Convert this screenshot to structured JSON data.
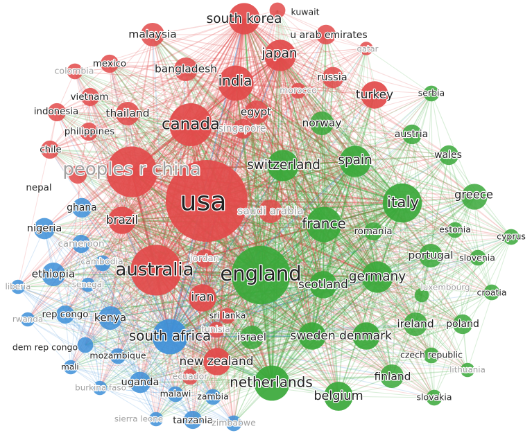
{
  "map": {
    "colors": {
      "red": "#e24a4a",
      "green": "#3aa83a",
      "blue": "#3d8fd8",
      "label": "#222222",
      "label_faint": "#a0a0a0"
    },
    "nodes": [
      {
        "id": "usa",
        "label": "usa",
        "cluster": "red",
        "weight": 10
      },
      {
        "id": "peoples-r-china",
        "label": "peoples r china",
        "cluster": "red",
        "weight": 6,
        "faint": true
      },
      {
        "id": "canada",
        "label": "canada",
        "cluster": "red",
        "weight": 5
      },
      {
        "id": "australia",
        "label": "australia",
        "cluster": "red",
        "weight": 6
      },
      {
        "id": "india",
        "label": "india",
        "cluster": "red",
        "weight": 4
      },
      {
        "id": "japan",
        "label": "japan",
        "cluster": "red",
        "weight": 3.5
      },
      {
        "id": "south-korea",
        "label": "south korea",
        "cluster": "red",
        "weight": 3.5
      },
      {
        "id": "malaysia",
        "label": "malaysia",
        "cluster": "red",
        "weight": 2.5
      },
      {
        "id": "kuwait",
        "label": "kuwait",
        "cluster": "red",
        "weight": 1.5
      },
      {
        "id": "u-arab-emirates",
        "label": "u arab emirates",
        "cluster": "red",
        "weight": 2
      },
      {
        "id": "qatar",
        "label": "qatar",
        "cluster": "red",
        "weight": 1.2,
        "faint": true
      },
      {
        "id": "mexico",
        "label": "mexico",
        "cluster": "red",
        "weight": 1.8
      },
      {
        "id": "colombia",
        "label": "colombia",
        "cluster": "red",
        "weight": 1.5,
        "faint": true
      },
      {
        "id": "bangladesh",
        "label": "bangladesh",
        "cluster": "red",
        "weight": 2.5
      },
      {
        "id": "vietnam",
        "label": "vietnam",
        "cluster": "red",
        "weight": 1.8
      },
      {
        "id": "indonesia",
        "label": "indonesia",
        "cluster": "red",
        "weight": 1.8
      },
      {
        "id": "thailand",
        "label": "thailand",
        "cluster": "red",
        "weight": 2.5
      },
      {
        "id": "philippines",
        "label": "philippines",
        "cluster": "red",
        "weight": 1.8
      },
      {
        "id": "chile",
        "label": "chile",
        "cluster": "red",
        "weight": 1.8
      },
      {
        "id": "nepal",
        "label": "nepal",
        "cluster": "red",
        "weight": 1.8
      },
      {
        "id": "egypt",
        "label": "egypt",
        "cluster": "red",
        "weight": 2.5
      },
      {
        "id": "singapore",
        "label": "singapore",
        "cluster": "red",
        "weight": 2,
        "faint": true
      },
      {
        "id": "russia",
        "label": "russia",
        "cluster": "red",
        "weight": 2.2
      },
      {
        "id": "morocco",
        "label": "morocco",
        "cluster": "red",
        "weight": 1.5,
        "faint": true
      },
      {
        "id": "turkey",
        "label": "turkey",
        "cluster": "red",
        "weight": 3
      },
      {
        "id": "brazil",
        "label": "brazil",
        "cluster": "red",
        "weight": 3
      },
      {
        "id": "saudi-arabia",
        "label": "saudi arabia",
        "cluster": "red",
        "weight": 2.5,
        "faint": true
      },
      {
        "id": "jordan",
        "label": "jordan",
        "cluster": "red",
        "weight": 1.8,
        "faint": true
      },
      {
        "id": "iran",
        "label": "iran",
        "cluster": "red",
        "weight": 3
      },
      {
        "id": "sri-lanka",
        "label": "sri lanka",
        "cluster": "red",
        "weight": 1.5
      },
      {
        "id": "tunisia",
        "label": "tunisia",
        "cluster": "red",
        "weight": 1.5,
        "faint": true
      },
      {
        "id": "new-zealand",
        "label": "new zealand",
        "cluster": "red",
        "weight": 3
      },
      {
        "id": "ecuador",
        "label": "ecuador",
        "cluster": "red",
        "weight": 1.5,
        "faint": true
      },
      {
        "id": "serbia",
        "label": "serbia",
        "cluster": "green",
        "weight": 1.5
      },
      {
        "id": "norway",
        "label": "norway",
        "cluster": "green",
        "weight": 2.5
      },
      {
        "id": "austria",
        "label": "austria",
        "cluster": "green",
        "weight": 2
      },
      {
        "id": "wales",
        "label": "wales",
        "cluster": "green",
        "weight": 2
      },
      {
        "id": "switzerland",
        "label": "switzerland",
        "cluster": "green",
        "weight": 3.5
      },
      {
        "id": "spain",
        "label": "spain",
        "cluster": "green",
        "weight": 3.5
      },
      {
        "id": "greece",
        "label": "greece",
        "cluster": "green",
        "weight": 2.8
      },
      {
        "id": "italy",
        "label": "italy",
        "cluster": "green",
        "weight": 4.5
      },
      {
        "id": "france",
        "label": "france",
        "cluster": "green",
        "weight": 4
      },
      {
        "id": "romania",
        "label": "romania",
        "cluster": "green",
        "weight": 1.8
      },
      {
        "id": "estonia",
        "label": "estonia",
        "cluster": "green",
        "weight": 1.5
      },
      {
        "id": "cyprus",
        "label": "cyprus",
        "cluster": "green",
        "weight": 1.5
      },
      {
        "id": "portugal",
        "label": "portugal",
        "cluster": "green",
        "weight": 2.5
      },
      {
        "id": "slovenia",
        "label": "slovenia",
        "cluster": "green",
        "weight": 1.5
      },
      {
        "id": "england",
        "label": "england",
        "cluster": "green",
        "weight": 7
      },
      {
        "id": "germany",
        "label": "germany",
        "cluster": "green",
        "weight": 3.5
      },
      {
        "id": "scotland",
        "label": "scotland",
        "cluster": "green",
        "weight": 3
      },
      {
        "id": "luxembourg",
        "label": "luxembourg",
        "cluster": "green",
        "weight": 1.3,
        "faint": true
      },
      {
        "id": "croatia",
        "label": "croatia",
        "cluster": "green",
        "weight": 1.5
      },
      {
        "id": "ireland",
        "label": "ireland",
        "cluster": "green",
        "weight": 2.5
      },
      {
        "id": "poland",
        "label": "poland",
        "cluster": "green",
        "weight": 2
      },
      {
        "id": "israel",
        "label": "israel",
        "cluster": "green",
        "weight": 2.5
      },
      {
        "id": "sweden",
        "label": "sweden",
        "cluster": "green",
        "weight": 3
      },
      {
        "id": "denmark",
        "label": "denmark",
        "cluster": "green",
        "weight": 3
      },
      {
        "id": "czech-republic",
        "label": "czech republic",
        "cluster": "green",
        "weight": 1.5
      },
      {
        "id": "lithuania",
        "label": "lithuania",
        "cluster": "green",
        "weight": 1.3,
        "faint": true
      },
      {
        "id": "finland",
        "label": "finland",
        "cluster": "green",
        "weight": 2.5
      },
      {
        "id": "netherlands",
        "label": "netherlands",
        "cluster": "green",
        "weight": 4
      },
      {
        "id": "belgium",
        "label": "belgium",
        "cluster": "green",
        "weight": 3.2
      },
      {
        "id": "slovakia",
        "label": "slovakia",
        "cluster": "green",
        "weight": 1.5
      },
      {
        "id": "ghana",
        "label": "ghana",
        "cluster": "blue",
        "weight": 2
      },
      {
        "id": "nigeria",
        "label": "nigeria",
        "cluster": "blue",
        "weight": 2.2
      },
      {
        "id": "cameroon",
        "label": "cameroon",
        "cluster": "blue",
        "weight": 1.8,
        "faint": true
      },
      {
        "id": "cambodia",
        "label": "cambodia",
        "cluster": "blue",
        "weight": 1.5,
        "faint": true
      },
      {
        "id": "ethiopia",
        "label": "ethiopia",
        "cluster": "blue",
        "weight": 2.5
      },
      {
        "id": "liberia",
        "label": "liberia",
        "cluster": "blue",
        "weight": 1.3,
        "faint": true
      },
      {
        "id": "senegal",
        "label": "senegal",
        "cluster": "blue",
        "weight": 1.3,
        "faint": true
      },
      {
        "id": "rwanda",
        "label": "rwanda",
        "cluster": "blue",
        "weight": 1.3,
        "faint": true
      },
      {
        "id": "rep-congo",
        "label": "rep congo",
        "cluster": "blue",
        "weight": 1.8
      },
      {
        "id": "kenya",
        "label": "kenya",
        "cluster": "blue",
        "weight": 2.5
      },
      {
        "id": "south-africa",
        "label": "south africa",
        "cluster": "blue",
        "weight": 4
      },
      {
        "id": "dem-rep-congo",
        "label": "dem rep congo",
        "cluster": "blue",
        "weight": 1.5
      },
      {
        "id": "mozambique",
        "label": "mozambique",
        "cluster": "blue",
        "weight": 1.5
      },
      {
        "id": "mali",
        "label": "mali",
        "cluster": "blue",
        "weight": 1.3
      },
      {
        "id": "burkina-faso",
        "label": "burkina faso",
        "cluster": "blue",
        "weight": 1.3,
        "faint": true
      },
      {
        "id": "uganda",
        "label": "uganda",
        "cluster": "blue",
        "weight": 2.2
      },
      {
        "id": "malawi",
        "label": "malawi",
        "cluster": "blue",
        "weight": 1.5
      },
      {
        "id": "zambia",
        "label": "zambia",
        "cluster": "blue",
        "weight": 1.5
      },
      {
        "id": "sierra-leone",
        "label": "sierra leone",
        "cluster": "blue",
        "weight": 1.3,
        "faint": true
      },
      {
        "id": "tanzania",
        "label": "tanzania",
        "cluster": "blue",
        "weight": 1.8
      },
      {
        "id": "zimbabwe",
        "label": "zimbabwe",
        "cluster": "blue",
        "weight": 1.5,
        "faint": true
      }
    ]
  }
}
